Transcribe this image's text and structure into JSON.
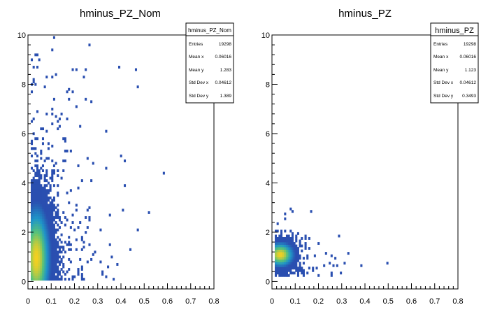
{
  "chart_data": [
    {
      "type": "heatmap",
      "title": "hminus_PZ_Nom",
      "xlabel": "",
      "ylabel": "",
      "xlim": [
        0,
        0.8
      ],
      "ylim": [
        -0.3,
        10
      ],
      "xticks": [
        "0",
        "0.1",
        "0.2",
        "0.3",
        "0.4",
        "0.5",
        "0.6",
        "0.7",
        "0.8"
      ],
      "yticks": [
        "0",
        "2",
        "4",
        "6",
        "8",
        "10"
      ],
      "grid": false,
      "legend": "none",
      "stats": {
        "name": "hminus_PZ_Nom",
        "rows": [
          {
            "label": "Entries",
            "value": "19298"
          },
          {
            "label": "Mean x",
            "value": "0.06016"
          },
          {
            "label": "Mean y",
            "value": "1.283"
          },
          {
            "label": "Std Dev x",
            "value": "0.04612"
          },
          {
            "label": "Std Dev y",
            "value": "1.389"
          }
        ]
      },
      "density": {
        "x0": 0.032,
        "sx": 0.045,
        "y0": 0.9,
        "sy": 1.6,
        "ymin": 0.05,
        "ymax": 10
      }
    },
    {
      "type": "heatmap",
      "title": "hminus_PZ",
      "xlabel": "",
      "ylabel": "",
      "xlim": [
        0,
        0.8
      ],
      "ylim": [
        -0.3,
        10
      ],
      "xticks": [
        "0",
        "0.1",
        "0.2",
        "0.3",
        "0.4",
        "0.5",
        "0.6",
        "0.7",
        "0.8"
      ],
      "yticks": [
        "0",
        "2",
        "4",
        "6",
        "8",
        "10"
      ],
      "grid": false,
      "legend": "none",
      "stats": {
        "name": "hminus_PZ",
        "rows": [
          {
            "label": "Entries",
            "value": "19298"
          },
          {
            "label": "Mean x",
            "value": "0.06016"
          },
          {
            "label": "Mean y",
            "value": "1.123"
          },
          {
            "label": "Std Dev x",
            "value": "0.04612"
          },
          {
            "label": "Std Dev y",
            "value": "0.3493"
          }
        ]
      },
      "density": {
        "x0": 0.032,
        "sx": 0.045,
        "y0": 1.05,
        "sy": 0.38,
        "ymin": 0.2,
        "ymax": 3.5
      }
    }
  ],
  "colors": {
    "axis": "#000000",
    "low": "#2a4fb0",
    "mid": "#1f96c8",
    "high": "#57c27a",
    "peak": "#f5d020"
  }
}
